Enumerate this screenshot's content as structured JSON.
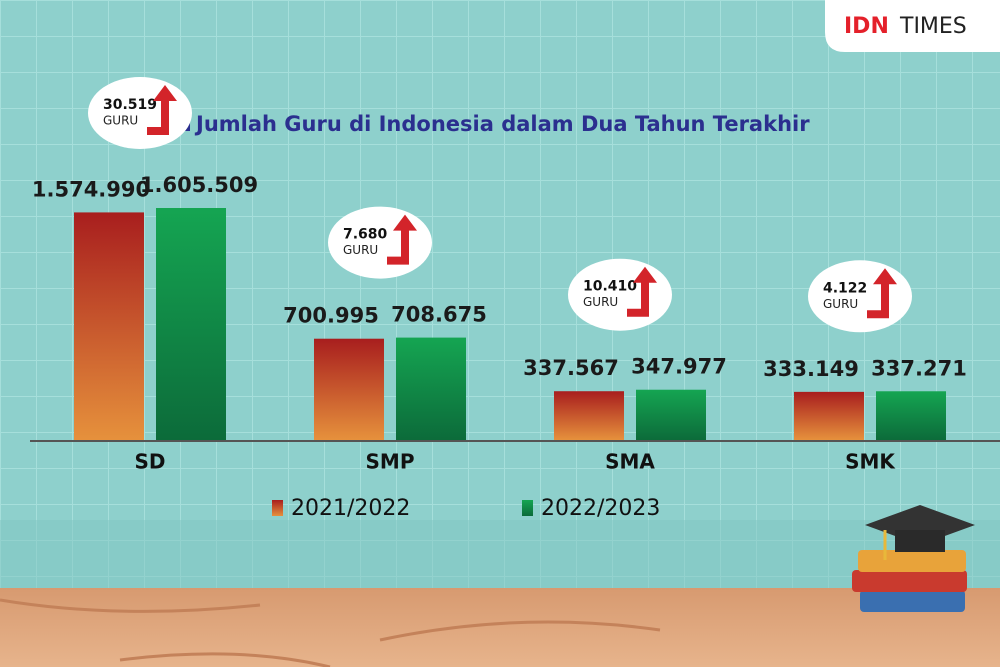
{
  "brand": [
    "IDN",
    "TIMES"
  ],
  "chart_data": {
    "type": "bar",
    "title": "Jumlah Guru di Indonesia dalam Dua Tahun Terakhir",
    "categories": [
      "SD",
      "SMP",
      "SMA",
      "SMK"
    ],
    "series": [
      {
        "name": "2021/2022",
        "color": "#a81e1e",
        "values": [
          1574990,
          700995,
          337567,
          333149
        ],
        "value_labels": [
          "1.574.990",
          "700.995",
          "337.567",
          "333.149"
        ]
      },
      {
        "name": "2022/2023",
        "color": "#15a552",
        "values": [
          1605509,
          708675,
          347977,
          337271
        ],
        "value_labels": [
          "1.605.509",
          "708.675",
          "347.977",
          "337.271"
        ]
      }
    ],
    "increase": {
      "values": [
        30519,
        7680,
        10410,
        4122
      ],
      "value_labels": [
        "30.519",
        "7.680",
        "10.410",
        "4.122"
      ],
      "unit": "GURU"
    }
  }
}
